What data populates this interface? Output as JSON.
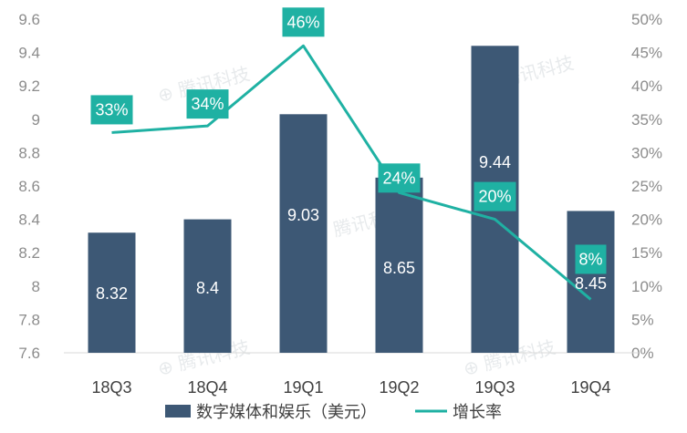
{
  "chart_data": {
    "type": "bar",
    "categories": [
      "18Q3",
      "18Q4",
      "19Q1",
      "19Q2",
      "19Q3",
      "19Q4"
    ],
    "series": [
      {
        "name": "数字媒体和娱乐（美元）",
        "type": "bar",
        "axis": "left",
        "values": [
          8.32,
          8.4,
          9.03,
          8.65,
          9.44,
          8.45
        ],
        "labels": [
          "8.32",
          "8.4",
          "9.03",
          "8.65",
          "9.44",
          "8.45"
        ],
        "color": "#3d5875"
      },
      {
        "name": "增长率",
        "type": "line",
        "axis": "right",
        "values": [
          33,
          34,
          46,
          24,
          20,
          8
        ],
        "labels": [
          "33%",
          "34%",
          "46%",
          "24%",
          "20%",
          "8%"
        ],
        "color": "#1fb1a3"
      }
    ],
    "y_left": {
      "min": 7.6,
      "max": 9.6,
      "ticks": [
        7.6,
        7.8,
        8,
        8.2,
        8.4,
        8.6,
        8.8,
        9,
        9.2,
        9.4,
        9.6
      ],
      "tick_labels": [
        "7.6",
        "7.8",
        "8",
        "8.2",
        "8.4",
        "8.6",
        "8.8",
        "9",
        "9.2",
        "9.4",
        "9.6"
      ]
    },
    "y_right": {
      "min": 0,
      "max": 50,
      "ticks": [
        0,
        5,
        10,
        15,
        20,
        25,
        30,
        35,
        40,
        45,
        50
      ],
      "tick_labels": [
        "0%",
        "5%",
        "10%",
        "15%",
        "20%",
        "25%",
        "30%",
        "35%",
        "40%",
        "45%",
        "50%"
      ]
    },
    "grid": false,
    "legend": "bottom",
    "title": "",
    "xlabel": "",
    "ylabel": "",
    "watermark": "腾讯科技",
    "colors": {
      "axis_text": "#8c8c8c",
      "category_text": "#404040",
      "axis_line": "#d9d9d9",
      "label_box": "#1fb1a3"
    }
  }
}
